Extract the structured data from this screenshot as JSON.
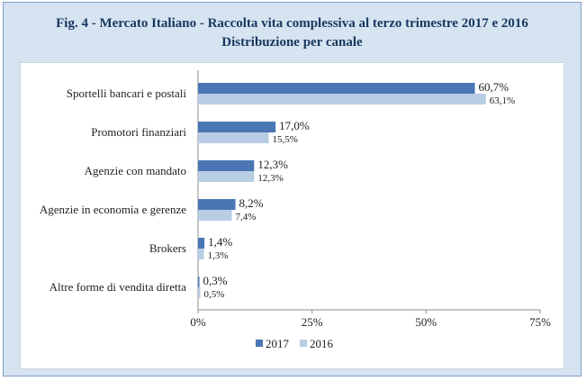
{
  "header": {
    "title_line1": "Fig. 4 - Mercato Italiano - Raccolta vita complessiva al terzo trimestre 2017 e 2016",
    "title_line2": "Distribuzione per canale"
  },
  "colors": {
    "series_2017": "#4a76b4",
    "series_2016": "#b8cce4",
    "title": "#17375e",
    "frame_bg": "#d6e3f1",
    "frame_border": "#7e9fc6"
  },
  "chart_data": {
    "type": "bar",
    "orientation": "horizontal",
    "categories": [
      "Sportelli bancari e postali",
      "Promotori finanziari",
      "Agenzie con mandato",
      "Agenzie in economia e gerenze",
      "Brokers",
      "Altre forme di vendita diretta"
    ],
    "series": [
      {
        "name": "2017",
        "values": [
          60.7,
          17.0,
          12.3,
          8.2,
          1.4,
          0.3
        ],
        "labels": [
          "60,7%",
          "17,0%",
          "12,3%",
          "8,2%",
          "1,4%",
          "0,3%"
        ],
        "color": "#4a76b4"
      },
      {
        "name": "2016",
        "values": [
          63.1,
          15.5,
          12.3,
          7.4,
          1.3,
          0.5
        ],
        "labels": [
          "63,1%",
          "15,5%",
          "12,3%",
          "7,4%",
          "1,3%",
          "0,5%"
        ],
        "color": "#b8cce4"
      }
    ],
    "xlim": [
      0,
      75
    ],
    "xticks": [
      0,
      25,
      50,
      75
    ],
    "xtick_labels": [
      "0%",
      "25%",
      "50%",
      "75%"
    ],
    "grid": false,
    "legend": "bottom-center",
    "title": "Fig. 4 - Mercato Italiano - Raccolta vita complessiva al terzo trimestre 2017 e 2016",
    "subtitle": "Distribuzione per canale"
  }
}
